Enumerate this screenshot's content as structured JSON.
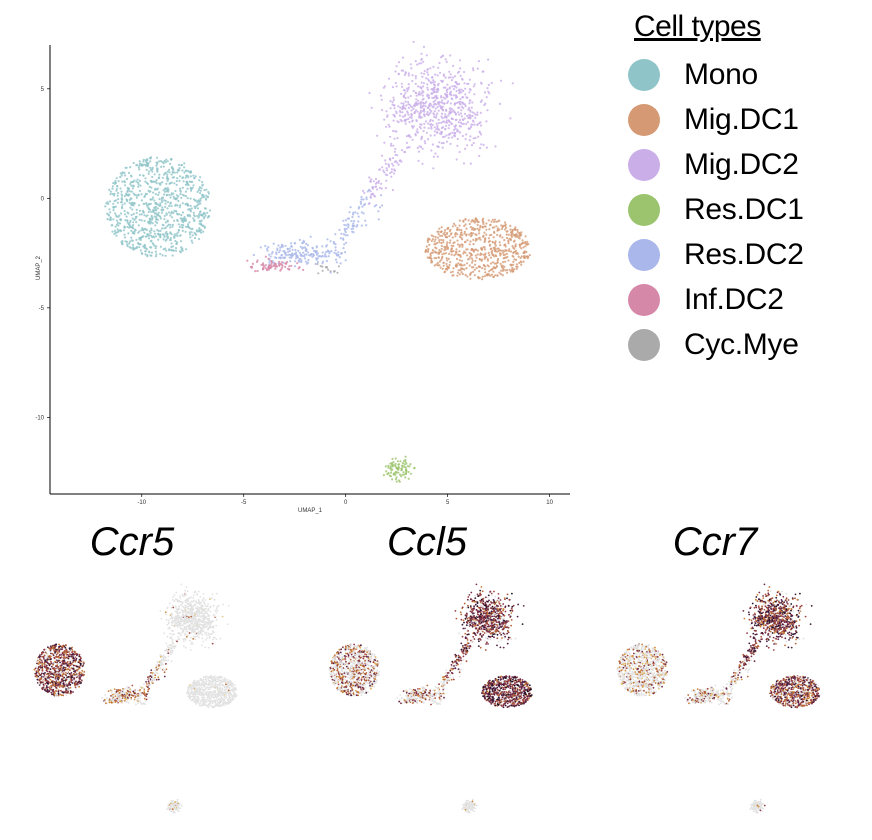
{
  "chart_data": [
    {
      "type": "scatter",
      "title": "",
      "xlabel": "UMAP_1",
      "ylabel": "UMAP_2",
      "xlim": [
        -14.5,
        11
      ],
      "ylim": [
        -13.5,
        7
      ],
      "xticks": [
        -10,
        -5,
        0,
        5,
        10
      ],
      "yticks": [
        5,
        0,
        -5,
        -10
      ],
      "grid": false,
      "legend_title": "Cell types",
      "legend_position": "right",
      "series": [
        {
          "name": "Mono",
          "color": "#8fc4c8",
          "center": [
            -9.2,
            -0.4
          ],
          "spread": [
            2.6,
            2.3
          ],
          "count": 900
        },
        {
          "name": "Mig.DC1",
          "color": "#d59a74",
          "center": [
            6.5,
            -2.3
          ],
          "spread": [
            2.6,
            1.4
          ],
          "count": 650
        },
        {
          "name": "Mig.DC2",
          "color": "#c9aee8",
          "center": [
            4.5,
            4.2
          ],
          "spread": [
            2.3,
            1.9
          ],
          "count": 700
        },
        {
          "name": "Res.DC1",
          "color": "#9cc46e",
          "center": [
            2.6,
            -12.4
          ],
          "spread": [
            0.7,
            0.5
          ],
          "count": 90
        },
        {
          "name": "Res.DC2",
          "color": "#a9b7ea",
          "center": [
            -2.3,
            -2.5
          ],
          "spread": [
            1.6,
            0.5
          ],
          "count": 160
        },
        {
          "name": "Inf.DC2",
          "color": "#d688a8",
          "center": [
            -3.5,
            -3.1
          ],
          "spread": [
            1.1,
            0.3
          ],
          "count": 70
        },
        {
          "name": "Cyc.Mye",
          "color": "#aaaaaa",
          "center": [
            -0.8,
            -3.2
          ],
          "spread": [
            0.6,
            0.2
          ],
          "count": 14
        }
      ]
    },
    {
      "type": "scatter",
      "title": "Ccr5",
      "xlabel": "",
      "ylabel": "",
      "expression_by_cluster": {
        "Mono": 0.85,
        "Mig.DC1": 0.02,
        "Mig.DC2": 0.03,
        "Res.DC1": 0.1,
        "Res.DC2": 0.5,
        "Inf.DC2": 0.45,
        "Cyc.Mye": 0.2
      }
    },
    {
      "type": "scatter",
      "title": "Ccl5",
      "xlabel": "",
      "ylabel": "",
      "expression_by_cluster": {
        "Mono": 0.5,
        "Mig.DC1": 0.95,
        "Mig.DC2": 0.85,
        "Res.DC1": 0.1,
        "Res.DC2": 0.45,
        "Inf.DC2": 0.4,
        "Cyc.Mye": 0.3
      }
    },
    {
      "type": "scatter",
      "title": "Ccr7",
      "xlabel": "",
      "ylabel": "",
      "expression_by_cluster": {
        "Mono": 0.3,
        "Mig.DC1": 0.8,
        "Mig.DC2": 0.9,
        "Res.DC1": 0.1,
        "Res.DC2": 0.4,
        "Inf.DC2": 0.35,
        "Cyc.Mye": 0.25
      }
    }
  ]
}
